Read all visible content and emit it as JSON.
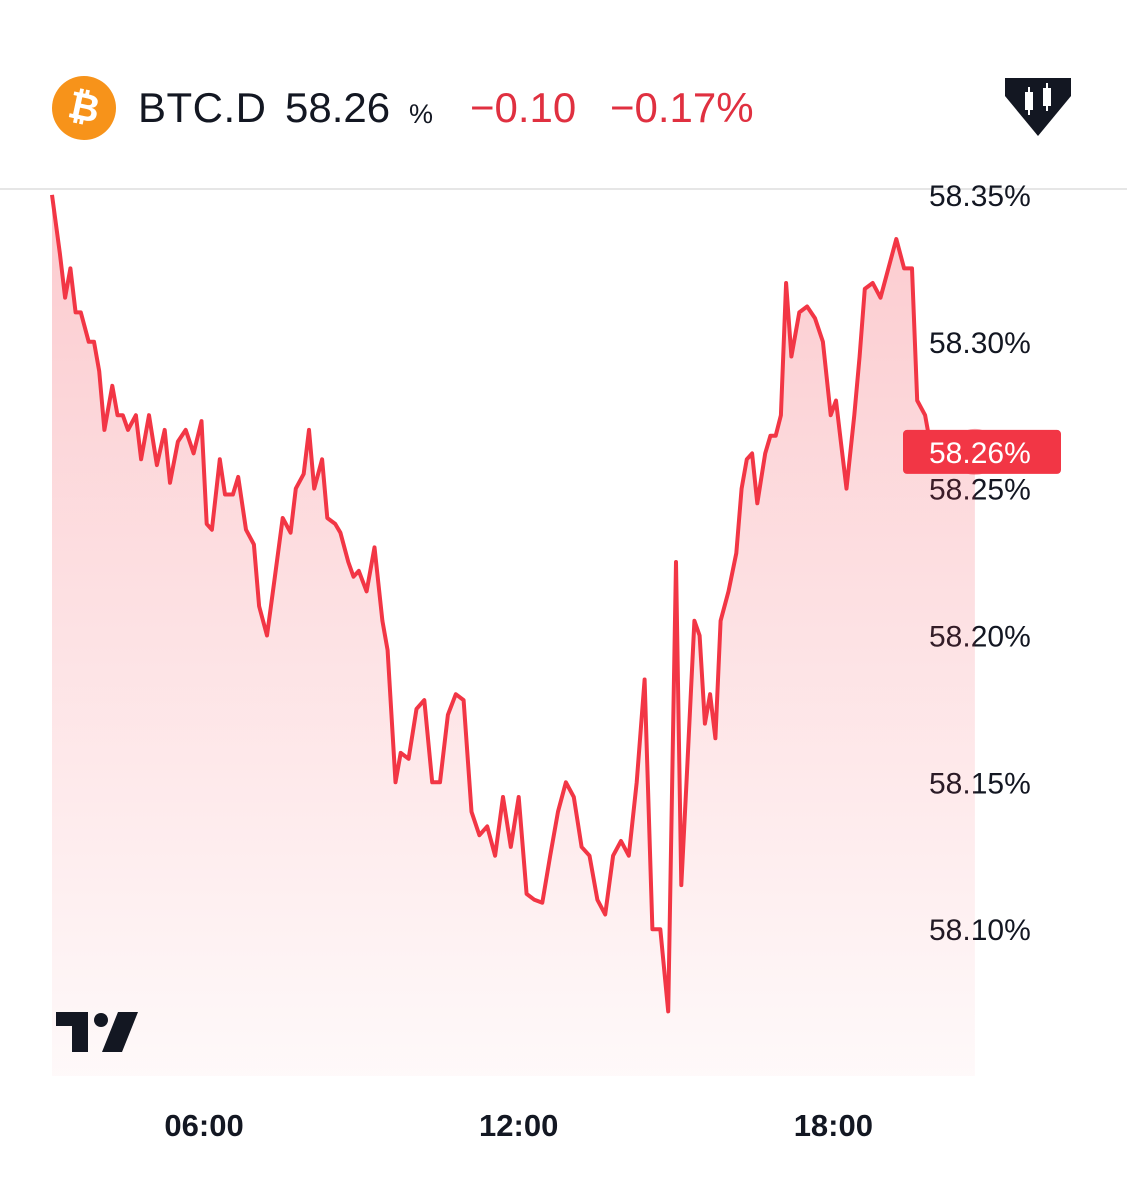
{
  "header": {
    "symbol": "BTC.D",
    "price": "58.26",
    "price_unit": "%",
    "change": "−0.10",
    "change_percent": "−0.17%",
    "coin_icon_glyph": "₿",
    "coin_icon": "bitcoin-icon",
    "candle_icon": "candlestick-icon",
    "coin_color": "#f7931a",
    "change_color": "#e03040"
  },
  "chart_data": {
    "type": "area",
    "line_color": "#f23645",
    "ylim": [
      58.05,
      58.351
    ],
    "y_ticks": [
      {
        "value": 58.35,
        "label": "58.35%"
      },
      {
        "value": 58.3,
        "label": "58.30%"
      },
      {
        "value": 58.25,
        "label": "58.25%"
      },
      {
        "value": 58.2,
        "label": "58.20%"
      },
      {
        "value": 58.15,
        "label": "58.15%"
      },
      {
        "value": 58.1,
        "label": "58.10%"
      }
    ],
    "x_ticks": [
      {
        "value": 6,
        "label": "06:00"
      },
      {
        "value": 12,
        "label": "12:00"
      },
      {
        "value": 18,
        "label": "18:00"
      }
    ],
    "xlim": [
      3.1,
      23.6
    ],
    "last_value_label": "58.26%",
    "last_value": 58.2625,
    "series": [
      {
        "x": [
          3.1,
          3.25,
          3.35,
          3.45,
          3.55,
          3.65,
          3.8,
          3.9,
          4.0,
          4.1,
          4.25,
          4.35,
          4.45,
          4.55,
          4.7,
          4.8,
          4.95,
          5.1,
          5.25,
          5.35,
          5.5,
          5.65,
          5.8,
          5.95,
          6.05,
          6.15,
          6.3,
          6.4,
          6.55,
          6.65,
          6.8,
          6.95,
          7.05,
          7.2,
          7.35,
          7.5,
          7.65,
          7.75,
          7.9,
          8.0,
          8.1,
          8.25,
          8.35,
          8.5,
          8.6,
          8.75,
          8.85,
          8.95,
          9.1,
          9.25,
          9.4,
          9.5,
          9.65,
          9.75,
          9.9,
          10.05,
          10.2,
          10.35,
          10.5,
          10.65,
          10.8,
          10.95,
          11.1,
          11.25,
          11.4,
          11.55,
          11.7,
          11.85,
          12.0,
          12.15,
          12.3,
          12.45,
          12.6,
          12.75,
          12.9,
          13.05,
          13.2,
          13.35,
          13.5,
          13.65,
          13.8,
          13.95,
          14.1,
          14.25,
          14.4,
          14.55,
          14.7,
          14.85,
          15.0,
          15.1,
          15.2,
          15.35,
          15.45,
          15.55,
          15.65,
          15.75,
          15.85,
          16.0,
          16.15,
          16.25,
          16.35,
          16.45,
          16.55,
          16.7,
          16.8,
          16.9,
          17.0,
          17.1,
          17.2,
          17.35,
          17.5,
          17.65,
          17.8,
          17.95,
          18.05,
          18.15,
          18.25,
          18.4,
          18.5,
          18.6,
          18.75,
          18.9,
          19.05,
          19.2,
          19.35,
          19.5,
          19.6,
          19.75,
          19.85,
          19.95,
          20.05,
          20.15,
          20.25,
          20.4,
          20.5,
          20.7
        ],
        "y": [
          58.35,
          58.33,
          58.315,
          58.325,
          58.31,
          58.31,
          58.3,
          58.3,
          58.29,
          58.27,
          58.285,
          58.275,
          58.275,
          58.27,
          58.275,
          58.26,
          58.275,
          58.258,
          58.27,
          58.252,
          58.266,
          58.27,
          58.262,
          58.273,
          58.238,
          58.236,
          58.26,
          58.248,
          58.248,
          58.254,
          58.236,
          58.231,
          58.21,
          58.2,
          58.22,
          58.24,
          58.235,
          58.25,
          58.255,
          58.27,
          58.25,
          58.26,
          58.24,
          58.238,
          58.235,
          58.225,
          58.22,
          58.222,
          58.215,
          58.23,
          58.205,
          58.195,
          58.15,
          58.16,
          58.158,
          58.175,
          58.178,
          58.15,
          58.15,
          58.173,
          58.18,
          58.178,
          58.14,
          58.132,
          58.135,
          58.125,
          58.145,
          58.128,
          58.145,
          58.112,
          58.11,
          58.109,
          58.125,
          58.14,
          58.15,
          58.145,
          58.128,
          58.125,
          58.11,
          58.105,
          58.125,
          58.13,
          58.125,
          58.15,
          58.185,
          58.1,
          58.1,
          58.072,
          58.225,
          58.115,
          58.15,
          58.205,
          58.2,
          58.17,
          58.18,
          58.165,
          58.205,
          58.215,
          58.228,
          58.25,
          58.26,
          58.262,
          58.245,
          58.262,
          58.268,
          58.268,
          58.275,
          58.32,
          58.295,
          58.31,
          58.312,
          58.308,
          58.3,
          58.275,
          58.28,
          58.265,
          58.25,
          58.275,
          58.295,
          58.318,
          58.32,
          58.315,
          58.325,
          58.335,
          58.325,
          58.325,
          58.28,
          58.275,
          58.265,
          58.2625,
          58.2625,
          58.2625,
          58.2625,
          58.2625,
          58.2625,
          58.2625
        ]
      }
    ]
  }
}
